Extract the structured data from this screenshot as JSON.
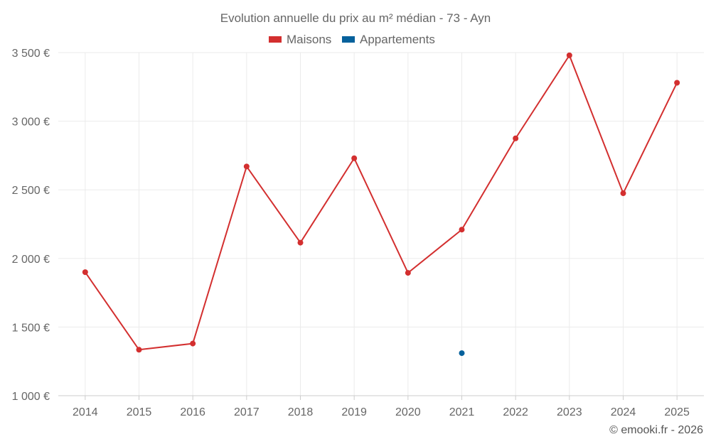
{
  "chart_data": {
    "type": "line",
    "title": "Evolution annuelle du prix au m² médian - 73 - Ayn",
    "categories": [
      "2014",
      "2015",
      "2016",
      "2017",
      "2018",
      "2019",
      "2020",
      "2021",
      "2022",
      "2023",
      "2024",
      "2025"
    ],
    "series": [
      {
        "name": "Maisons",
        "color": "#d32f2f",
        "values": [
          1900,
          1335,
          1380,
          2670,
          2115,
          2730,
          1895,
          2210,
          2875,
          3480,
          2475,
          3280
        ]
      },
      {
        "name": "Appartements",
        "color": "#05619c",
        "values": [
          null,
          null,
          null,
          null,
          null,
          null,
          null,
          1310,
          null,
          null,
          null,
          null
        ]
      }
    ],
    "ylim": [
      1000,
      3500
    ],
    "yticks": [
      {
        "value": 1000,
        "label": "1 000 €"
      },
      {
        "value": 1500,
        "label": "1 500 €"
      },
      {
        "value": 2000,
        "label": "2 000 €"
      },
      {
        "value": 2500,
        "label": "2 500 €"
      },
      {
        "value": 3000,
        "label": "3 000 €"
      },
      {
        "value": 3500,
        "label": "3 500 €"
      }
    ],
    "xlabel": "",
    "ylabel": "",
    "grid": true,
    "legend_position": "top"
  },
  "credit": "© emooki.fr - 2026"
}
